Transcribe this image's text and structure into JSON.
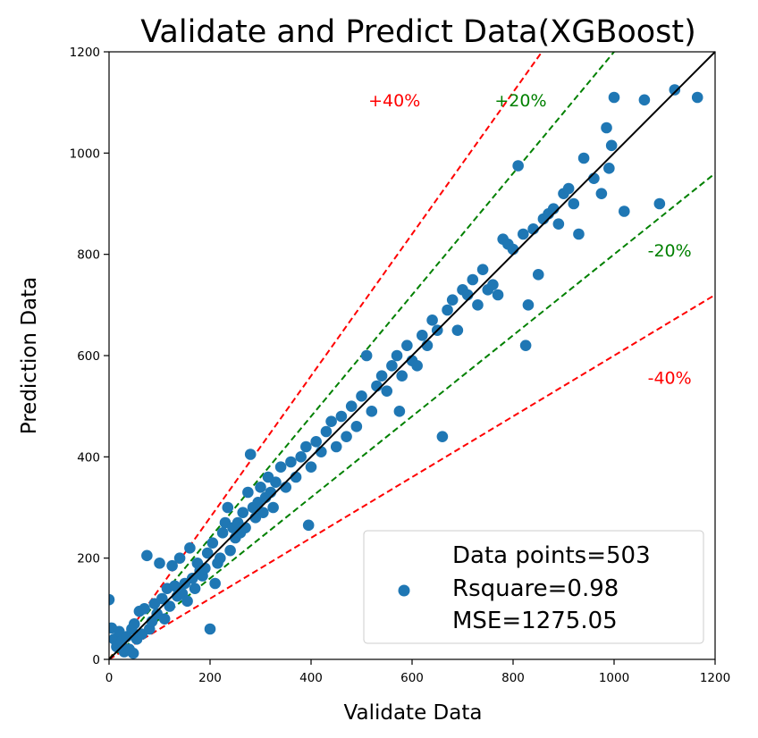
{
  "chart_data": {
    "type": "scatter",
    "title": "Validate and Predict Data(XGBoost)",
    "xlabel": "Validate Data",
    "ylabel": "Prediction Data",
    "xlim": [
      0,
      1200
    ],
    "ylim": [
      0,
      1200
    ],
    "xticks": [
      "0",
      "200",
      "400",
      "600",
      "800",
      "1000",
      "1200"
    ],
    "yticks": [
      "0",
      "200",
      "400",
      "600",
      "800",
      "1000",
      "1200"
    ],
    "grid": false,
    "legend_position": "lower-right",
    "legend": {
      "lines": [
        "Data points=503",
        "Rsquare=0.98",
        "MSE=1275.05"
      ],
      "marker_color": "#1f77b4"
    },
    "colors": {
      "points": "#1f77b4",
      "identity": "#000000",
      "band20": "#008000",
      "band40": "#ff0000"
    },
    "reference_lines": [
      {
        "label": "+40%",
        "slope": 1.4,
        "color": "#ff0000",
        "label_pos": [
          565,
          1105
        ]
      },
      {
        "label": "+20%",
        "slope": 1.2,
        "color": "#008000",
        "label_pos": [
          815,
          1105
        ]
      },
      {
        "label": "-20%",
        "slope": 0.8,
        "color": "#008000",
        "label_pos": [
          1110,
          808
        ]
      },
      {
        "label": "-40%",
        "slope": 0.6,
        "color": "#ff0000",
        "label_pos": [
          1110,
          557
        ]
      }
    ],
    "points": [
      [
        0,
        118
      ],
      [
        5,
        62
      ],
      [
        10,
        40
      ],
      [
        15,
        25
      ],
      [
        20,
        55
      ],
      [
        25,
        35
      ],
      [
        30,
        15
      ],
      [
        35,
        45
      ],
      [
        40,
        20
      ],
      [
        45,
        60
      ],
      [
        48,
        12
      ],
      [
        50,
        70
      ],
      [
        55,
        40
      ],
      [
        60,
        95
      ],
      [
        65,
        50
      ],
      [
        70,
        100
      ],
      [
        75,
        205
      ],
      [
        80,
        60
      ],
      [
        85,
        75
      ],
      [
        90,
        110
      ],
      [
        95,
        90
      ],
      [
        100,
        190
      ],
      [
        105,
        120
      ],
      [
        110,
        80
      ],
      [
        115,
        140
      ],
      [
        120,
        105
      ],
      [
        125,
        185
      ],
      [
        130,
        145
      ],
      [
        135,
        125
      ],
      [
        140,
        200
      ],
      [
        145,
        130
      ],
      [
        150,
        150
      ],
      [
        155,
        115
      ],
      [
        160,
        220
      ],
      [
        165,
        160
      ],
      [
        170,
        140
      ],
      [
        175,
        190
      ],
      [
        180,
        175
      ],
      [
        185,
        165
      ],
      [
        190,
        180
      ],
      [
        195,
        210
      ],
      [
        200,
        60
      ],
      [
        205,
        230
      ],
      [
        210,
        150
      ],
      [
        215,
        190
      ],
      [
        220,
        200
      ],
      [
        225,
        250
      ],
      [
        230,
        270
      ],
      [
        235,
        300
      ],
      [
        240,
        215
      ],
      [
        245,
        260
      ],
      [
        250,
        240
      ],
      [
        255,
        270
      ],
      [
        260,
        250
      ],
      [
        265,
        290
      ],
      [
        270,
        260
      ],
      [
        275,
        330
      ],
      [
        280,
        405
      ],
      [
        285,
        300
      ],
      [
        290,
        280
      ],
      [
        295,
        310
      ],
      [
        300,
        340
      ],
      [
        305,
        290
      ],
      [
        310,
        320
      ],
      [
        315,
        360
      ],
      [
        320,
        330
      ],
      [
        325,
        300
      ],
      [
        330,
        350
      ],
      [
        340,
        380
      ],
      [
        350,
        340
      ],
      [
        360,
        390
      ],
      [
        370,
        360
      ],
      [
        380,
        400
      ],
      [
        390,
        420
      ],
      [
        395,
        265
      ],
      [
        400,
        380
      ],
      [
        410,
        430
      ],
      [
        420,
        410
      ],
      [
        430,
        450
      ],
      [
        440,
        470
      ],
      [
        450,
        420
      ],
      [
        460,
        480
      ],
      [
        470,
        440
      ],
      [
        480,
        500
      ],
      [
        490,
        460
      ],
      [
        500,
        520
      ],
      [
        510,
        600
      ],
      [
        520,
        490
      ],
      [
        530,
        540
      ],
      [
        540,
        560
      ],
      [
        550,
        530
      ],
      [
        560,
        580
      ],
      [
        570,
        600
      ],
      [
        575,
        490
      ],
      [
        580,
        560
      ],
      [
        590,
        620
      ],
      [
        600,
        590
      ],
      [
        610,
        580
      ],
      [
        620,
        640
      ],
      [
        630,
        620
      ],
      [
        640,
        670
      ],
      [
        650,
        650
      ],
      [
        660,
        440
      ],
      [
        670,
        690
      ],
      [
        680,
        710
      ],
      [
        690,
        650
      ],
      [
        700,
        730
      ],
      [
        710,
        720
      ],
      [
        720,
        750
      ],
      [
        730,
        700
      ],
      [
        740,
        770
      ],
      [
        750,
        730
      ],
      [
        760,
        740
      ],
      [
        770,
        720
      ],
      [
        780,
        830
      ],
      [
        790,
        820
      ],
      [
        800,
        810
      ],
      [
        810,
        975
      ],
      [
        820,
        840
      ],
      [
        825,
        620
      ],
      [
        830,
        700
      ],
      [
        840,
        850
      ],
      [
        850,
        760
      ],
      [
        860,
        870
      ],
      [
        870,
        880
      ],
      [
        880,
        890
      ],
      [
        890,
        860
      ],
      [
        900,
        920
      ],
      [
        910,
        930
      ],
      [
        920,
        900
      ],
      [
        930,
        840
      ],
      [
        940,
        990
      ],
      [
        960,
        950
      ],
      [
        975,
        920
      ],
      [
        985,
        1050
      ],
      [
        990,
        970
      ],
      [
        995,
        1015
      ],
      [
        1000,
        1110
      ],
      [
        1020,
        885
      ],
      [
        1060,
        1105
      ],
      [
        1090,
        900
      ],
      [
        1120,
        1125
      ],
      [
        1165,
        1110
      ]
    ]
  }
}
